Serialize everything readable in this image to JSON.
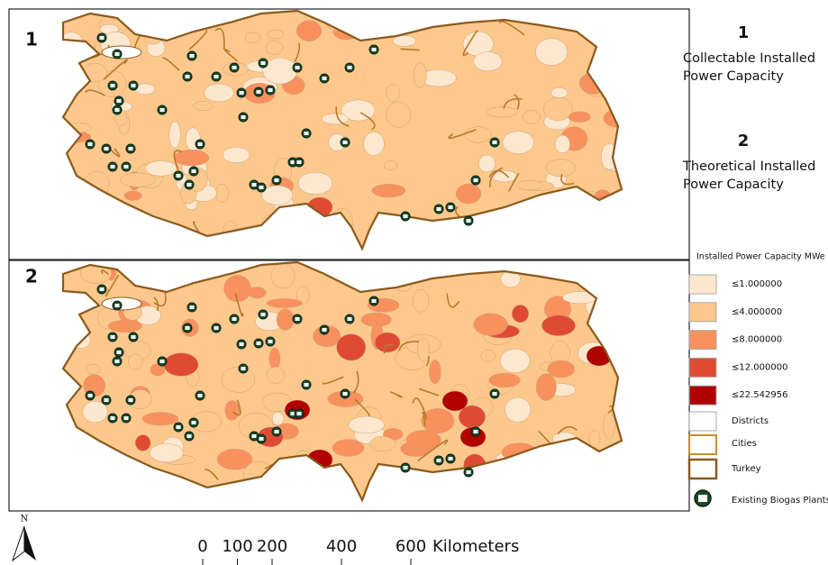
{
  "panels": [
    {
      "number": "1"
    },
    {
      "number": "2"
    }
  ],
  "titles": [
    {
      "number": "1",
      "lines": [
        "Collectable Installed",
        "Power Capacity"
      ]
    },
    {
      "number": "2",
      "lines": [
        "Theoretical Installed",
        "Power Capacity"
      ]
    }
  ],
  "legend": {
    "title": "Installed Power Capacity MWe",
    "classes": [
      {
        "label": "≤1.000000",
        "color": "#fde8cf"
      },
      {
        "label": "≤4.000000",
        "color": "#fdc88c"
      },
      {
        "label": "≤8.000000",
        "color": "#f8915e"
      },
      {
        "label": "≤12.000000",
        "color": "#df4a34"
      },
      {
        "label": "≤22.542956",
        "color": "#b00000"
      }
    ],
    "layers": [
      {
        "label": "Districts"
      },
      {
        "label": "Cities"
      },
      {
        "label": "Turkey"
      },
      {
        "label": "Existing Biogas Plants"
      }
    ]
  },
  "scale_bar": {
    "ticks": [
      0,
      100,
      200,
      400,
      600
    ],
    "unit": "Kilometers"
  },
  "north": "N"
}
